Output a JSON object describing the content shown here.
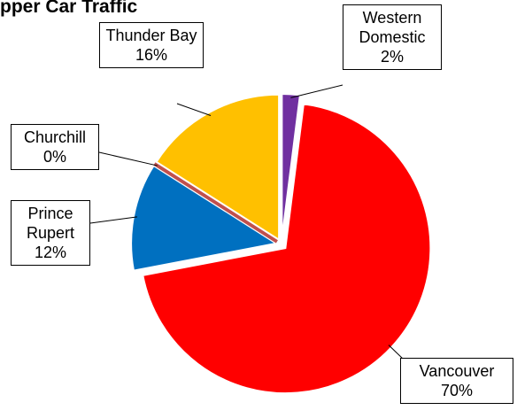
{
  "chart_data": {
    "type": "pie",
    "title": "pper Car Traffic",
    "categories": [
      "Western Domestic",
      "Vancouver",
      "Prince Rupert",
      "Churchill",
      "Thunder Bay"
    ],
    "values": [
      2,
      70,
      12,
      0,
      16
    ],
    "value_labels": [
      "2%",
      "70%",
      "12%",
      "0%",
      "16%"
    ],
    "colors": [
      "#7030a0",
      "#ff0000",
      "#0070c0",
      "#c0504d",
      "#ffc000"
    ]
  }
}
